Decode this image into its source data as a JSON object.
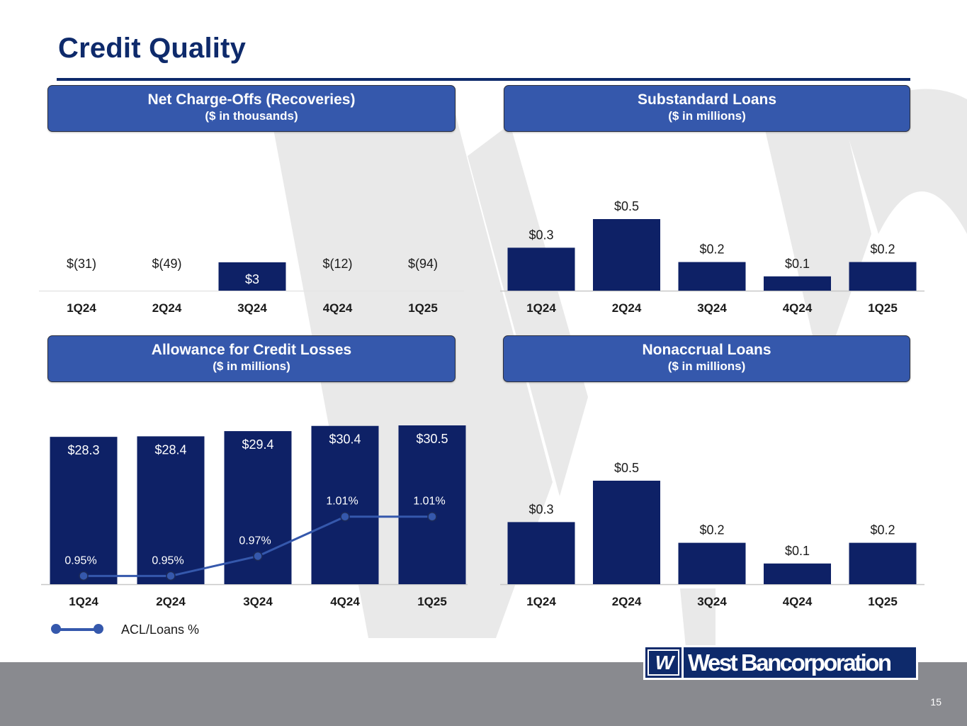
{
  "page": {
    "title": "Credit Quality",
    "page_number": "15"
  },
  "logo": {
    "mark": "W",
    "name": "West Bancorporation"
  },
  "colors": {
    "bar": "#0e2166",
    "header": "#3558ac",
    "line": "#3558ac",
    "title": "#0e2a6b",
    "footer": "#898a8f"
  },
  "panels": {
    "ncos": {
      "title": "Net Charge-Offs (Recoveries)",
      "subtitle": "($ in thousands)"
    },
    "substandard": {
      "title": "Substandard Loans",
      "subtitle": "($ in millions)"
    },
    "acl": {
      "title": "Allowance for Credit Losses",
      "subtitle": "($ in millions)"
    },
    "nonaccrual": {
      "title": "Nonaccrual Loans",
      "subtitle": "($ in millions)"
    }
  },
  "legend": {
    "label": "ACL/Loans %"
  },
  "chart_data": [
    {
      "id": "ncos",
      "type": "bar",
      "categories": [
        "1Q24",
        "2Q24",
        "3Q24",
        "4Q24",
        "1Q25"
      ],
      "values": [
        -31,
        -49,
        3,
        -12,
        -94
      ],
      "data_labels": [
        "$(31)",
        "$(49)",
        "$3",
        "$(12)",
        "$(94)"
      ],
      "ylim": [
        0,
        3
      ],
      "note": "only positive value is drawn as a bar"
    },
    {
      "id": "substandard",
      "type": "bar",
      "categories": [
        "1Q24",
        "2Q24",
        "3Q24",
        "4Q24",
        "1Q25"
      ],
      "values": [
        0.3,
        0.5,
        0.2,
        0.1,
        0.2
      ],
      "data_labels": [
        "$0.3",
        "$0.5",
        "$0.2",
        "$0.1",
        "$0.2"
      ],
      "ylim": [
        0,
        0.5
      ]
    },
    {
      "id": "acl",
      "type": "bar",
      "categories": [
        "1Q24",
        "2Q24",
        "3Q24",
        "4Q24",
        "1Q25"
      ],
      "values": [
        28.3,
        28.4,
        29.4,
        30.4,
        30.5
      ],
      "data_labels": [
        "$28.3",
        "$28.4",
        "$29.4",
        "$30.4",
        "$30.5"
      ],
      "ylim": [
        0,
        30.5
      ],
      "line_series": {
        "name": "ACL/Loans %",
        "values": [
          0.95,
          0.95,
          0.97,
          1.01,
          1.01
        ],
        "data_labels": [
          "0.95%",
          "0.95%",
          "0.97%",
          "1.01%",
          "1.01%"
        ],
        "ylim": [
          0.9,
          1.05
        ]
      }
    },
    {
      "id": "nonaccrual",
      "type": "bar",
      "categories": [
        "1Q24",
        "2Q24",
        "3Q24",
        "4Q24",
        "1Q25"
      ],
      "values": [
        0.3,
        0.5,
        0.2,
        0.1,
        0.2
      ],
      "data_labels": [
        "$0.3",
        "$0.5",
        "$0.2",
        "$0.1",
        "$0.2"
      ],
      "ylim": [
        0,
        0.5
      ]
    }
  ]
}
